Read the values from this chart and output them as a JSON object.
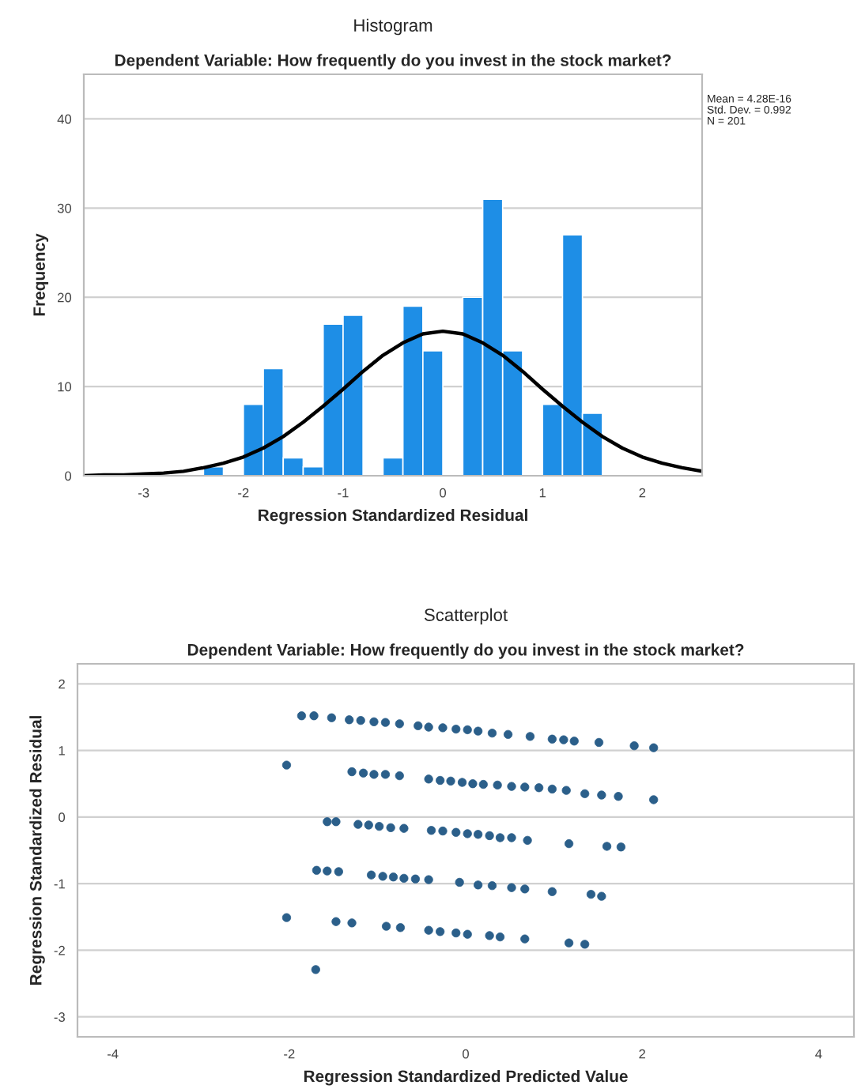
{
  "chart_data": [
    {
      "type": "histogram",
      "title": "Histogram",
      "subtitle": "Dependent Variable: How frequently do you invest in the stock market?",
      "xlabel": "Regression Standardized Residual",
      "ylabel": "Frequency",
      "bins": [
        -2.4,
        -2.2,
        -2.0,
        -1.8,
        -1.6,
        -1.4,
        -1.2,
        -1.0,
        -0.8,
        -0.6,
        -0.4,
        -0.2,
        0,
        0.2,
        0.4,
        0.6,
        0.8,
        1.0,
        1.2,
        1.4,
        1.6
      ],
      "values": [
        1,
        0,
        8,
        12,
        2,
        1,
        17,
        18,
        0,
        2,
        19,
        14,
        0,
        20,
        31,
        14,
        0,
        8,
        27,
        7
      ],
      "color": "#1e8ee6",
      "series": [
        {
          "type": "line",
          "color": "#000000",
          "x": [
            -3.6,
            -3.4,
            -3.2,
            -3.0,
            -2.8,
            -2.6,
            -2.4,
            -2.2,
            -2.0,
            -1.8,
            -1.6,
            -1.4,
            -1.2,
            -1.0,
            -0.8,
            -0.6,
            -0.4,
            -0.2,
            0,
            0.2,
            0.4,
            0.6,
            0.8,
            1.0,
            1.2,
            1.4,
            1.6,
            1.8,
            2.0,
            2.2,
            2.4,
            2.6
          ],
          "values": [
            0.0,
            0.1,
            0.1,
            0.2,
            0.3,
            0.5,
            0.9,
            1.4,
            2.1,
            3.1,
            4.4,
            6.0,
            7.8,
            9.7,
            11.7,
            13.5,
            14.9,
            15.9,
            16.2,
            15.9,
            14.9,
            13.5,
            11.7,
            9.7,
            7.8,
            6.0,
            4.4,
            3.1,
            2.1,
            1.4,
            0.9,
            0.5
          ]
        }
      ],
      "xlim": [
        -3.6,
        2.6
      ],
      "xticks": [
        -3,
        -2,
        -1,
        0,
        1,
        2
      ],
      "ylim": [
        0,
        45
      ],
      "yticks": [
        0,
        10,
        20,
        30,
        40
      ],
      "grid": "y",
      "annotations": [
        "Mean = 4.28E-16",
        "Std. Dev. = 0.992",
        "N = 201"
      ]
    },
    {
      "type": "scatter",
      "title": "Scatterplot",
      "subtitle": "Dependent Variable: How frequently do you invest in the stock market?",
      "xlabel": "Regression Standardized Predicted Value",
      "ylabel": "Regression Standardized Residual",
      "color": "#2b5f8a",
      "marker": "circle",
      "x": [
        -1.86,
        -1.72,
        -1.52,
        -1.32,
        -1.19,
        -1.04,
        -0.91,
        -0.75,
        -0.54,
        -0.42,
        -0.26,
        -0.11,
        0.02,
        0.14,
        0.3,
        0.48,
        0.73,
        0.98,
        1.11,
        1.23,
        1.51,
        1.91,
        2.13,
        -2.03,
        -1.29,
        -1.16,
        -1.04,
        -0.91,
        -0.75,
        -0.42,
        -0.29,
        -0.17,
        -0.04,
        0.08,
        0.2,
        0.36,
        0.52,
        0.67,
        0.83,
        0.98,
        1.14,
        1.35,
        1.54,
        1.73,
        2.13,
        -1.57,
        -1.47,
        -1.22,
        -1.1,
        -0.98,
        -0.85,
        -0.7,
        -0.39,
        -0.26,
        -0.11,
        0.02,
        0.14,
        0.27,
        0.39,
        0.52,
        0.7,
        1.17,
        1.6,
        1.76,
        -1.69,
        -1.57,
        -1.44,
        -1.07,
        -0.94,
        -0.82,
        -0.7,
        -0.57,
        -0.42,
        -0.07,
        0.14,
        0.3,
        0.52,
        0.67,
        0.98,
        1.42,
        1.54,
        -2.03,
        -1.47,
        -1.29,
        -0.9,
        -0.74,
        -0.42,
        -0.29,
        -0.11,
        0.02,
        0.27,
        0.39,
        0.67,
        1.17,
        1.35,
        -1.7
      ],
      "values": [
        1.52,
        1.52,
        1.49,
        1.46,
        1.45,
        1.43,
        1.42,
        1.4,
        1.37,
        1.35,
        1.34,
        1.32,
        1.31,
        1.29,
        1.26,
        1.24,
        1.21,
        1.17,
        1.16,
        1.14,
        1.12,
        1.07,
        1.04,
        0.78,
        0.68,
        0.66,
        0.64,
        0.64,
        0.62,
        0.57,
        0.55,
        0.54,
        0.52,
        0.5,
        0.49,
        0.48,
        0.46,
        0.45,
        0.44,
        0.42,
        0.4,
        0.35,
        0.33,
        0.31,
        0.26,
        -0.07,
        -0.07,
        -0.11,
        -0.12,
        -0.14,
        -0.16,
        -0.17,
        -0.2,
        -0.21,
        -0.23,
        -0.25,
        -0.26,
        -0.28,
        -0.31,
        -0.31,
        -0.35,
        -0.4,
        -0.44,
        -0.45,
        -0.8,
        -0.81,
        -0.82,
        -0.87,
        -0.89,
        -0.9,
        -0.92,
        -0.93,
        -0.94,
        -0.98,
        -1.02,
        -1.03,
        -1.06,
        -1.08,
        -1.12,
        -1.16,
        -1.19,
        -1.51,
        -1.57,
        -1.59,
        -1.64,
        -1.66,
        -1.7,
        -1.72,
        -1.74,
        -1.76,
        -1.78,
        -1.8,
        -1.83,
        -1.89,
        -1.91,
        -2.29
      ],
      "xlim": [
        -4.4,
        4.4
      ],
      "xticks": [
        -4,
        -2,
        0,
        2,
        4
      ],
      "ylim": [
        -3.3,
        2.3
      ],
      "yticks": [
        -3,
        -2,
        -1,
        0,
        1,
        2
      ],
      "grid": "y"
    }
  ]
}
